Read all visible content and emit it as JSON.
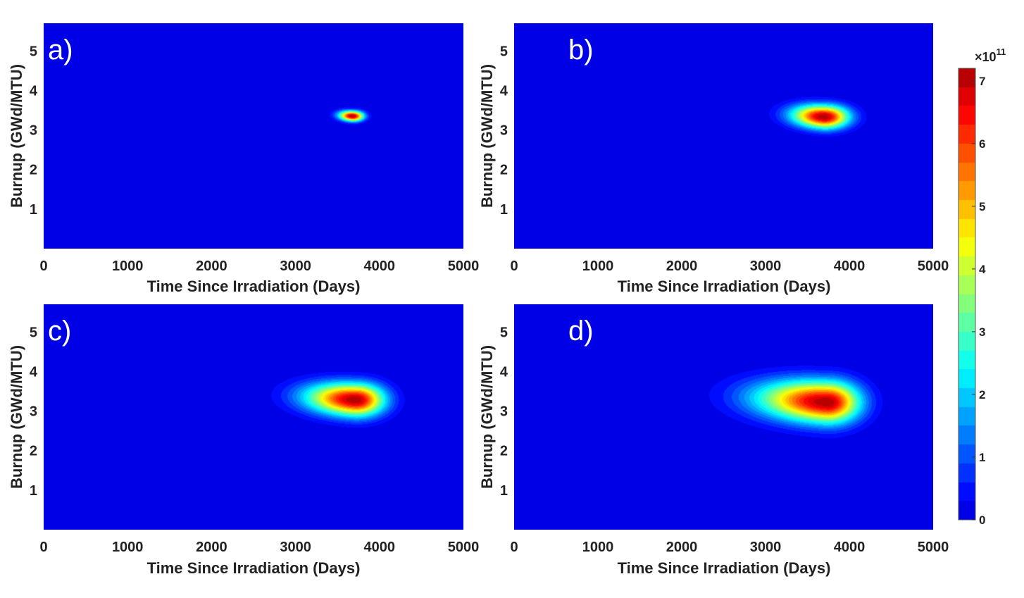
{
  "figure": {
    "colormap": "jet",
    "background_color": "#0a22a8",
    "colorbar": {
      "range": [
        0,
        7.2
      ],
      "ticks": [
        "0",
        "1",
        "2",
        "3",
        "4",
        "5",
        "6",
        "7"
      ],
      "tick_values": [
        0,
        1,
        2,
        3,
        4,
        5,
        6,
        7
      ],
      "exponent_base": "×10",
      "exponent_power": "11"
    }
  },
  "chart_data": [
    {
      "type": "heatmap",
      "panel_label": "a)",
      "xlabel": "Time Since Irradiation (Days)",
      "ylabel": "Burnup (GWd/MTU)",
      "xlim": [
        0,
        5000
      ],
      "ylim": [
        0,
        5.7
      ],
      "xticks": [
        "0",
        "1000",
        "2000",
        "3000",
        "4000",
        "5000"
      ],
      "yticks": [
        "1",
        "2",
        "3",
        "4",
        "5"
      ],
      "peak": {
        "x": 3680,
        "y": 3.35,
        "value": 7.2,
        "sigma_x_left": 110,
        "sigma_x_right": 90,
        "sigma_y": 0.09
      }
    },
    {
      "type": "heatmap",
      "panel_label": "b)",
      "xlabel": "Time Since Irradiation (Days)",
      "ylabel": "Burnup (GWd/MTU)",
      "xlim": [
        0,
        5000
      ],
      "ylim": [
        0,
        5.7
      ],
      "xticks": [
        "0",
        "1000",
        "2000",
        "3000",
        "4000",
        "5000"
      ],
      "yticks": [
        "1",
        "2",
        "3",
        "4",
        "5"
      ],
      "peak": {
        "x": 3700,
        "y": 3.33,
        "value": 7.2,
        "sigma_x_left": 260,
        "sigma_x_right": 200,
        "sigma_y": 0.2
      }
    },
    {
      "type": "heatmap",
      "panel_label": "c)",
      "xlabel": "Time Since Irradiation (Days)",
      "ylabel": "Burnup (GWd/MTU)",
      "xlim": [
        0,
        5000
      ],
      "ylim": [
        0,
        5.7
      ],
      "xticks": [
        "0",
        "1000",
        "2000",
        "3000",
        "4000",
        "5000"
      ],
      "yticks": [
        "1",
        "2",
        "3",
        "4",
        "5"
      ],
      "peak": {
        "x": 3720,
        "y": 3.28,
        "value": 7.2,
        "sigma_x_left": 400,
        "sigma_x_right": 230,
        "sigma_y": 0.28
      }
    },
    {
      "type": "heatmap",
      "panel_label": "d)",
      "xlabel": "Time Since Irradiation (Days)",
      "ylabel": "Burnup (GWd/MTU)",
      "xlim": [
        0,
        5000
      ],
      "ylim": [
        0,
        5.7
      ],
      "xticks": [
        "0",
        "1000",
        "2000",
        "3000",
        "4000",
        "5000"
      ],
      "yticks": [
        "1",
        "2",
        "3",
        "4",
        "5"
      ],
      "peak": {
        "x": 3740,
        "y": 3.22,
        "value": 7.2,
        "sigma_x_left": 560,
        "sigma_x_right": 260,
        "sigma_y": 0.36
      }
    }
  ]
}
